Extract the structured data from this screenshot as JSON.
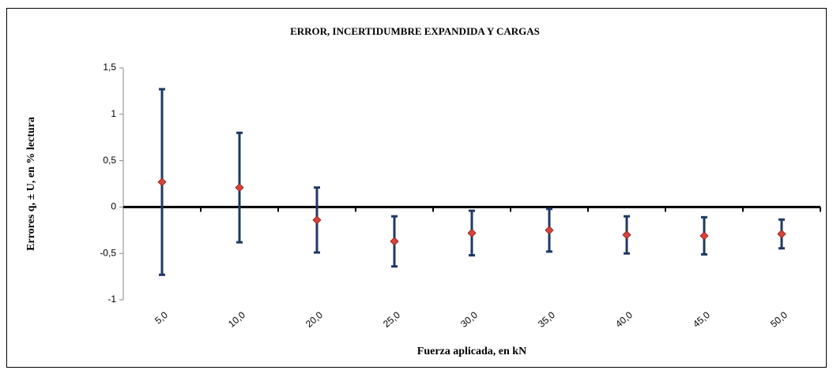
{
  "chart_data": {
    "type": "errorbar",
    "title": "ERROR, INCERTIDUMBRE EXPANDIDA Y CARGAS",
    "x_label": "Fuerza aplicada, en kN",
    "y_label": "Errores q, ± U, en % lectura",
    "categories": [
      "5,0",
      "10,0",
      "20,0",
      "25,0",
      "30,0",
      "35,0",
      "40,0",
      "45,0",
      "50,0"
    ],
    "values": [
      0.27,
      0.21,
      -0.14,
      -0.37,
      -0.28,
      -0.25,
      -0.3,
      -0.31,
      -0.29
    ],
    "errors": [
      1.0,
      0.59,
      0.35,
      0.27,
      0.24,
      0.23,
      0.2,
      0.2,
      0.155
    ],
    "color": "#d9413a",
    "error_color": "#1f3864",
    "ylim": [
      -1,
      1.5
    ],
    "yticks": [
      {
        "value": 1.5,
        "label": "1,5"
      },
      1,
      {
        "value": 0.5,
        "label": "0,5"
      },
      0,
      {
        "value": -0.5,
        "label": "-0,5"
      },
      -1
    ]
  }
}
